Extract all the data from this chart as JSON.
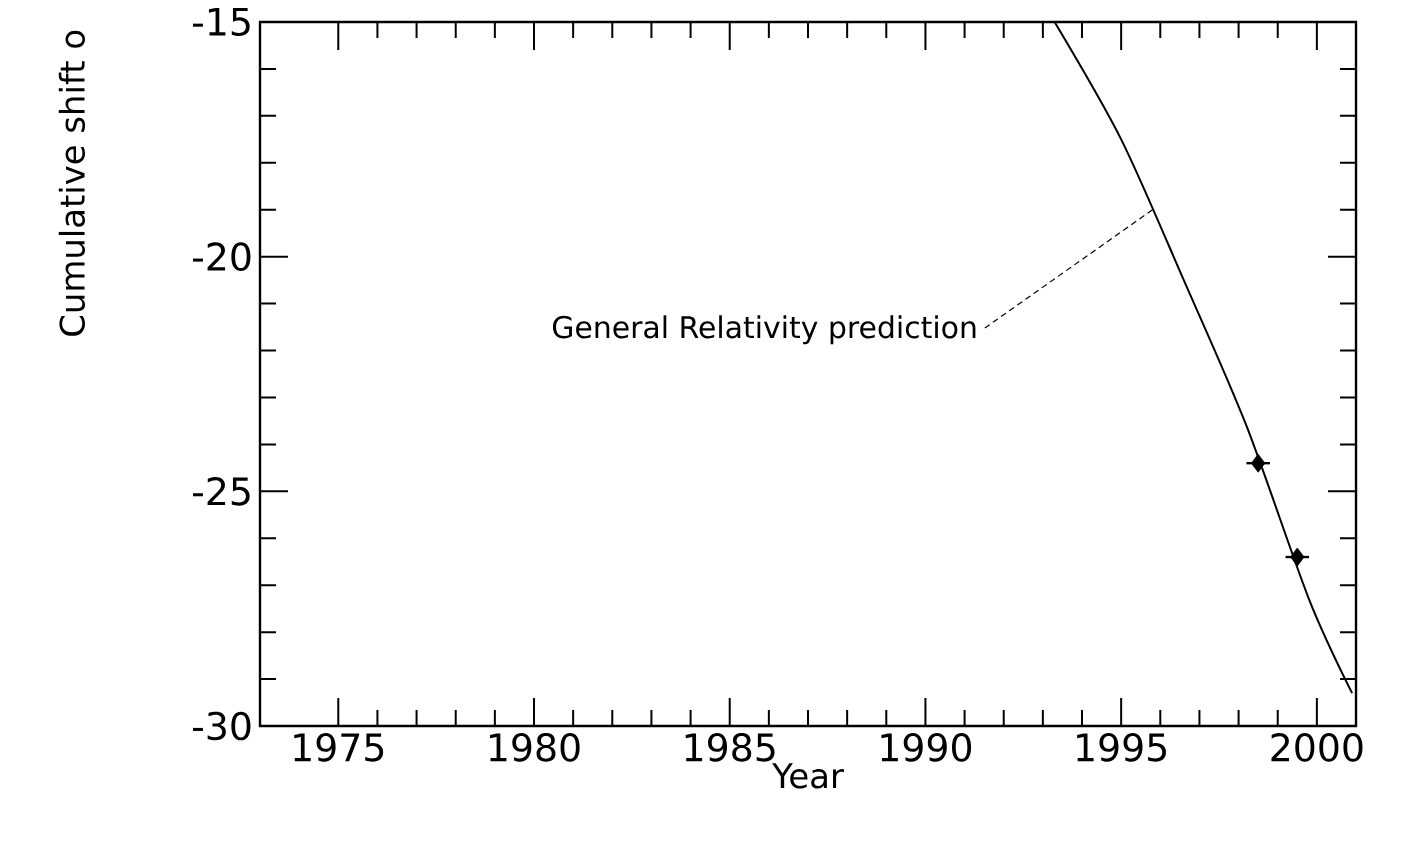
{
  "chart_data": {
    "type": "line",
    "xlabel": "Year",
    "ylabel": "Cumulative shift o",
    "xlim": [
      1973,
      2001
    ],
    "ylim": [
      -30,
      -15
    ],
    "xticks": [
      1975,
      1980,
      1985,
      1990,
      1995,
      2000
    ],
    "yticks": [
      -30,
      -25,
      -20,
      -15
    ],
    "grid": false,
    "annotations": [
      {
        "text": "General Relativity prediction",
        "x": 1995.8,
        "y": -19.0
      }
    ],
    "series": [
      {
        "color": "#000000",
        "line_style": "solid",
        "marker": "none",
        "x": [
          1993.3,
          1995.0,
          1996.6,
          1998.2,
          1999.8,
          2000.9
        ],
        "values": [
          -15.0,
          -17.5,
          -20.5,
          -23.6,
          -27.3,
          -29.3
        ]
      },
      {
        "type": "scatter",
        "color": "#000000",
        "marker": "diamond",
        "x": [
          1998.5,
          1999.5
        ],
        "values": [
          -24.4,
          -26.4
        ],
        "xerrors": [
          0.3,
          0.3
        ]
      }
    ]
  }
}
